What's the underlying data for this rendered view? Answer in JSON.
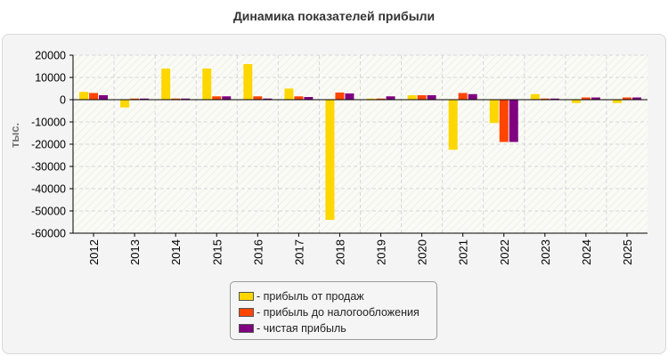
{
  "chart_data": {
    "type": "bar",
    "title": "Динамика показателей прибыли",
    "ylabel": "тыс.",
    "xlabel": "",
    "categories": [
      "2012",
      "2013",
      "2014",
      "2015",
      "2016",
      "2017",
      "2018",
      "2019",
      "2020",
      "2021",
      "2022",
      "2023",
      "2024",
      "2025"
    ],
    "series": [
      {
        "name": "прибыль от продаж",
        "color": "#ffd700",
        "values": [
          3500,
          -3500,
          14000,
          14000,
          16000,
          5000,
          -54000,
          500,
          2000,
          -22500,
          -10500,
          2500,
          -1500,
          -1500
        ]
      },
      {
        "name": "прибыль до налогообложения",
        "color": "#ff4500",
        "values": [
          3000,
          500,
          500,
          1500,
          1500,
          1500,
          3200,
          500,
          2000,
          3000,
          -19000,
          500,
          1000,
          1000
        ]
      },
      {
        "name": "чистая прибыль",
        "color": "#800080",
        "values": [
          2000,
          500,
          500,
          1500,
          500,
          1200,
          2800,
          1500,
          2000,
          2500,
          -19000,
          500,
          1000,
          1000
        ]
      }
    ],
    "ylim": [
      -60000,
      20000
    ],
    "yticks": [
      20000,
      10000,
      0,
      -10000,
      -20000,
      -30000,
      -40000,
      -50000,
      -60000
    ],
    "grid": true,
    "legend_position": "bottom-center"
  },
  "legend": {
    "items": [
      {
        "label": "- прибыль от продаж",
        "color": "#ffd700"
      },
      {
        "label": "- прибыль до налогообложения",
        "color": "#ff4500"
      },
      {
        "label": "- чистая прибыль",
        "color": "#800080"
      }
    ]
  }
}
